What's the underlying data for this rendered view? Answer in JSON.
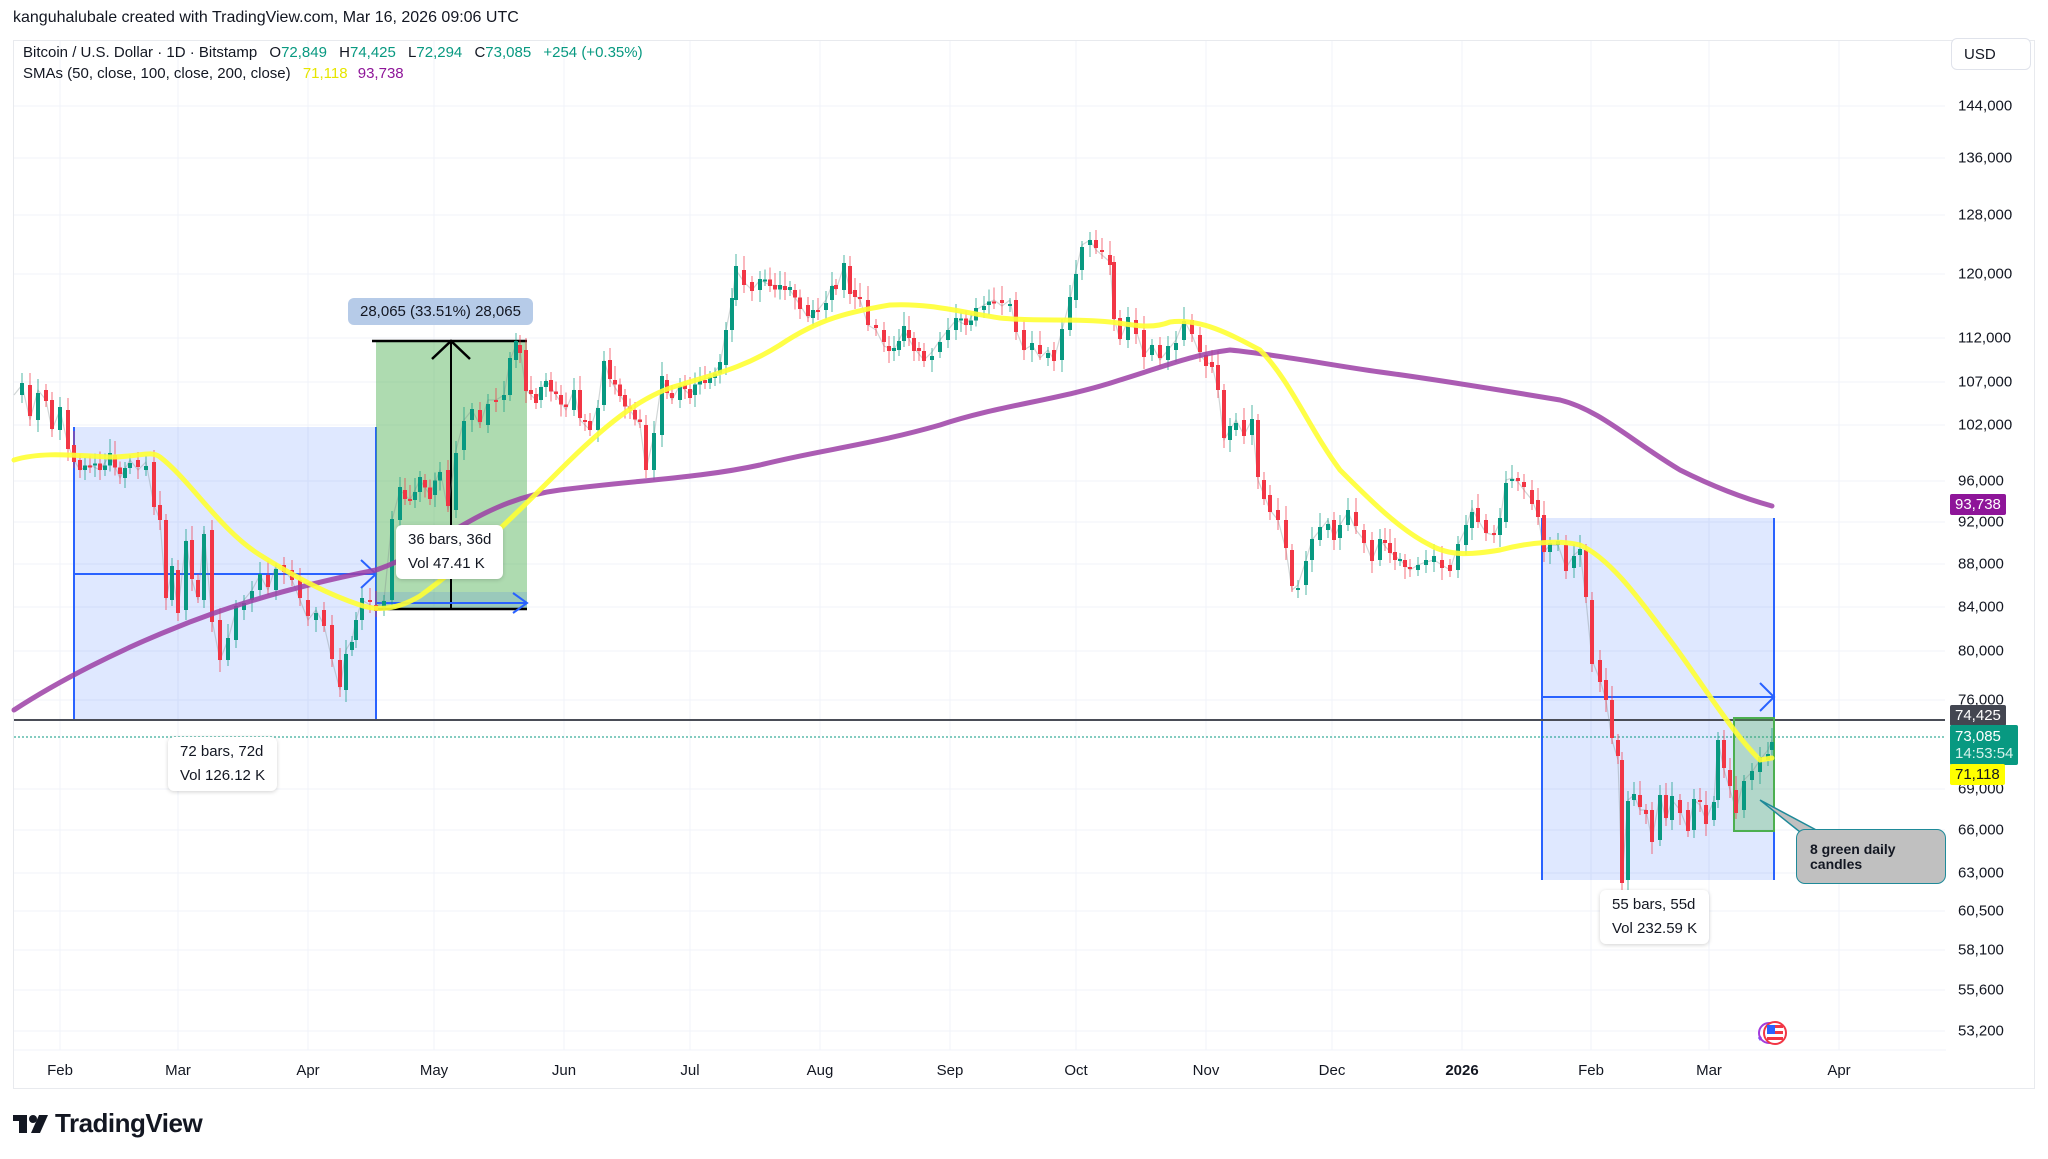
{
  "header": {
    "attribution": "kanguhalubale created with TradingView.com, Mar 16, 2026 09:06 UTC"
  },
  "legend": {
    "symbol": "Bitcoin / U.S. Dollar · 1D · Bitstamp",
    "open_label": "O",
    "open": "72,849",
    "high_label": "H",
    "high": "74,425",
    "low_label": "L",
    "low": "72,294",
    "close_label": "C",
    "close": "73,085",
    "change": "+254 (+0.35%)",
    "sma_label": "SMAs (50, close, 100, close, 200, close)",
    "sma50_value": "71,118",
    "sma200_value": "93,738"
  },
  "price_scale": {
    "currency": "USD",
    "ticks": [
      "144,000",
      "136,000",
      "128,000",
      "120,000",
      "112,000",
      "107,000",
      "102,000",
      "96,000",
      "92,000",
      "88,000",
      "84,000",
      "80,000",
      "76,000",
      "69,000",
      "66,000",
      "63,000",
      "60,500",
      "58,100",
      "55,600",
      "53,200"
    ]
  },
  "price_tags": {
    "sma200": "93,738",
    "high": "74,425",
    "last": "73,085",
    "countdown": "14:53:54",
    "sma50": "71,118"
  },
  "time_scale": {
    "ticks": [
      "Feb",
      "Mar",
      "Apr",
      "May",
      "Jun",
      "Jul",
      "Aug",
      "Sep",
      "Oct",
      "Nov",
      "Dec",
      "2026",
      "Feb",
      "Mar",
      "Apr"
    ]
  },
  "measurements": {
    "left": {
      "bars": "72 bars, 72d",
      "vol": "Vol 126.12 K"
    },
    "middle": {
      "bars": "36 bars, 36d",
      "vol": "Vol 47.41 K",
      "change": "28,065 (33.51%) 28,065"
    },
    "right": {
      "bars": "55 bars, 55d",
      "vol": "Vol 232.59 K"
    }
  },
  "callout": {
    "text": "8 green daily candles"
  },
  "footer": {
    "brand": "TradingView"
  },
  "colors": {
    "up": "#089981",
    "down": "#f23645",
    "sma50": "#ffff33",
    "sma200": "#9c3fa6",
    "range_blue": "#2962ff",
    "range_fill": "rgba(41,98,255,0.15)",
    "green_fill": "rgba(76,175,80,0.45)"
  },
  "chart_data": {
    "type": "candlestick",
    "title": "Bitcoin / U.S. Dollar · 1D · Bitstamp",
    "interval": "1D",
    "ohlc_last": {
      "open": 72849,
      "high": 74425,
      "low": 72294,
      "close": 73085,
      "change": 254,
      "change_pct": 0.35
    },
    "x_ticks": [
      "Feb",
      "Mar",
      "Apr",
      "May",
      "Jun",
      "Jul",
      "Aug",
      "Sep",
      "Oct",
      "Nov",
      "Dec",
      "2026",
      "Feb",
      "Mar",
      "Apr"
    ],
    "y_ticks": [
      144000,
      136000,
      128000,
      120000,
      112000,
      107000,
      102000,
      96000,
      92000,
      88000,
      84000,
      80000,
      76000,
      69000,
      66000,
      63000,
      60500,
      58100,
      55600,
      53200
    ],
    "y_scale": "log",
    "ylim": [
      51500,
      150000
    ],
    "approx_close_path": {
      "dates": [
        "2025-01-20",
        "2025-02-01",
        "2025-02-20",
        "2025-03-01",
        "2025-03-10",
        "2025-03-25",
        "2025-04-07",
        "2025-04-20",
        "2025-05-10",
        "2025-05-22",
        "2025-06-05",
        "2025-06-22",
        "2025-07-14",
        "2025-08-14",
        "2025-09-01",
        "2025-09-15",
        "2025-10-06",
        "2025-10-11",
        "2025-10-25",
        "2025-11-05",
        "2025-11-21",
        "2025-12-01",
        "2025-12-15",
        "2026-01-01",
        "2026-01-14",
        "2026-01-20",
        "2026-02-05",
        "2026-02-06",
        "2026-02-20",
        "2026-02-28",
        "2026-03-05",
        "2026-03-16"
      ],
      "close": [
        104000,
        101000,
        96500,
        84500,
        82000,
        87000,
        76500,
        84500,
        103500,
        111500,
        104500,
        100500,
        120000,
        119000,
        108500,
        116000,
        125000,
        112000,
        111500,
        103000,
        82000,
        91500,
        88500,
        87500,
        96000,
        91000,
        63000,
        70000,
        66500,
        64000,
        71500,
        73085
      ]
    },
    "series": [
      {
        "name": "SMA 50",
        "color": "#ffff33",
        "last": 71118
      },
      {
        "name": "SMA 200",
        "color": "#9c3fa6",
        "last": 93738
      }
    ],
    "annotations": [
      {
        "type": "date-price range",
        "label": "72 bars, 72d, Vol 126.12 K",
        "from": "2025-02-02",
        "to": "2025-04-14",
        "price_from": 74400,
        "price_to": 102000
      },
      {
        "type": "price range",
        "label": "28,065 (33.51%) 28,065; 36 bars, 36d, Vol 47.41 K",
        "from": "2025-04-14",
        "to": "2025-05-21",
        "price_from": 83800,
        "price_to": 111900
      },
      {
        "type": "date-price range",
        "label": "55 bars, 55d, Vol 232.59 K",
        "from": "2026-01-20",
        "to": "2026-03-16",
        "price_from": 62600,
        "price_to": 92300
      },
      {
        "type": "rectangle",
        "label": "8 green daily candles",
        "from": "2026-03-08",
        "to": "2026-03-16",
        "price_from": 65800,
        "price_to": 74400
      },
      {
        "type": "horizontal line",
        "price": 74425
      }
    ],
    "legend_position": "top-left",
    "grid": true
  }
}
